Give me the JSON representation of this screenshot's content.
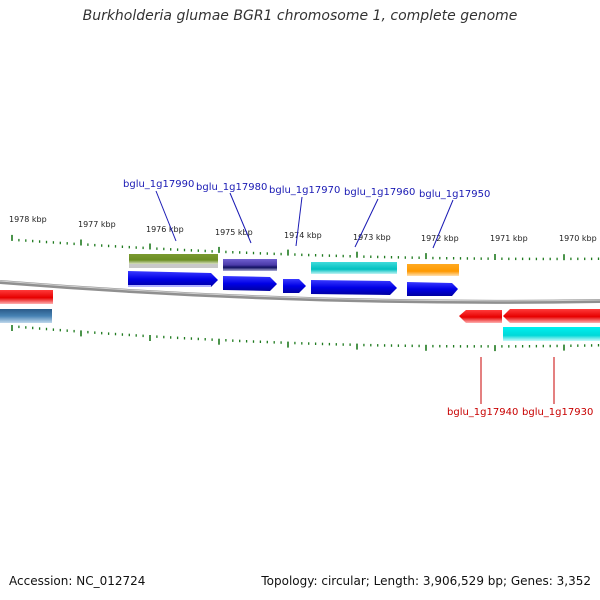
{
  "title": "Burkholderia glumae BGR1 chromosome 1, complete genome",
  "footer": {
    "accession": "Accession: NC_012724",
    "summary": "Topology: circular; Length: 3,906,529 bp; Genes: 3,352"
  },
  "colors": {
    "backbone": "#808080",
    "tick": "#1e7a1e",
    "forward_gene": "#0000e6",
    "reverse_gene": "#e60000",
    "label_forward": "#1a1ab4",
    "label_reverse": "#c80000"
  },
  "chart_data": {
    "type": "genome-map",
    "axis": {
      "unit": "kbp",
      "direction": "decreasing-left-to-right",
      "tick_labels": [
        "1978 kbp",
        "1977 kbp",
        "1976 kbp",
        "1975 kbp",
        "1974 kbp",
        "1973 kbp",
        "1972 kbp",
        "1971 kbp",
        "1970 kbp"
      ]
    },
    "genes_top": [
      {
        "name": "bglu_1g17990",
        "color": "#0000e6"
      },
      {
        "name": "bglu_1g17980",
        "color": "#0000e6"
      },
      {
        "name": "bglu_1g17970",
        "color": "#0000e6"
      },
      {
        "name": "bglu_1g17960",
        "color": "#0000e6"
      },
      {
        "name": "bglu_1g17950",
        "color": "#0000e6"
      }
    ],
    "genes_bottom": [
      {
        "name": "bglu_1g17940",
        "color": "#e60000"
      },
      {
        "name": "bglu_1g17930",
        "color": "#e60000"
      }
    ],
    "feature_colors_top": [
      "#6b8e23",
      "#4b3ba8",
      "#00c8c8",
      "#ff9900"
    ],
    "feature_colors_bottom": [
      "#00e6e6"
    ],
    "feature_colors_left": [
      "#e60000",
      "#4682b4"
    ]
  }
}
